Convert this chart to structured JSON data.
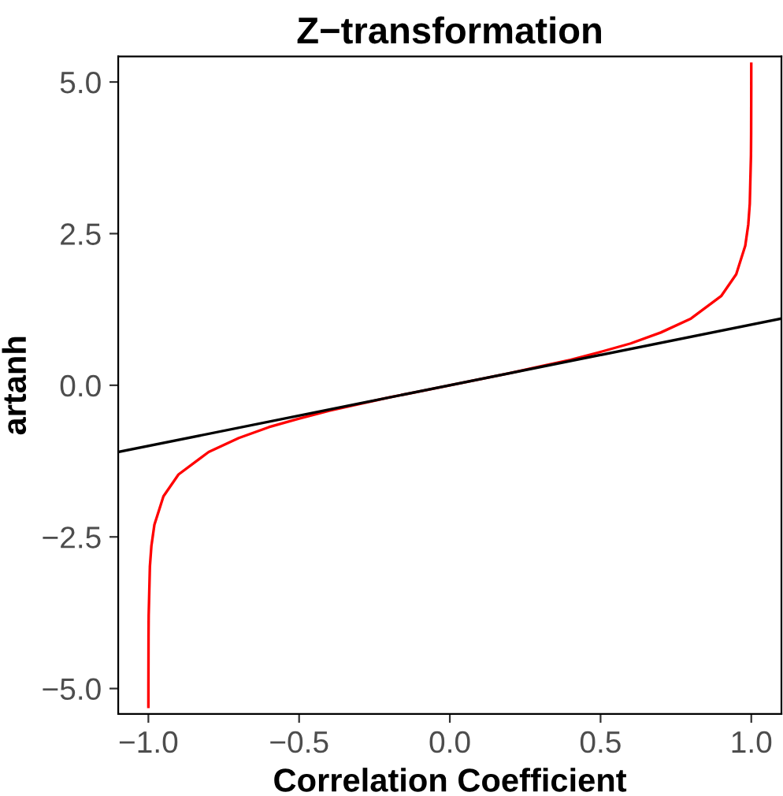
{
  "chart_data": {
    "type": "line",
    "title": "Z−transformation",
    "xlabel": "Correlation Coefficient",
    "ylabel": "artanh",
    "xlim": [
      -1.1,
      1.1
    ],
    "ylim": [
      -5.42,
      5.42
    ],
    "xticks": [
      {
        "value": -1.0,
        "label": "−1.0"
      },
      {
        "value": -0.5,
        "label": "−0.5"
      },
      {
        "value": 0,
        "label": "0.0"
      },
      {
        "value": 0.5,
        "label": "0.5"
      },
      {
        "value": 1.0,
        "label": "1.0"
      }
    ],
    "yticks": [
      {
        "value": -5.0,
        "label": "−5.0"
      },
      {
        "value": -2.5,
        "label": "−2.5"
      },
      {
        "value": 0,
        "label": "0.0"
      },
      {
        "value": 2.5,
        "label": "2.5"
      },
      {
        "value": 5.0,
        "label": "5.0"
      }
    ],
    "grid": false,
    "marker": "none",
    "line_style": "solid",
    "series": [
      {
        "color": "#ff0000",
        "x": [
          -0.99995,
          -0.9999,
          -0.9995,
          -0.999,
          -0.995,
          -0.99,
          -0.98,
          -0.95,
          -0.9,
          -0.8,
          -0.7,
          -0.6,
          -0.5,
          -0.4,
          -0.3,
          -0.2,
          -0.1,
          0,
          0.1,
          0.2,
          0.3,
          0.4,
          0.5,
          0.6,
          0.7,
          0.8,
          0.9,
          0.95,
          0.98,
          0.99,
          0.995,
          0.999,
          0.9995,
          0.9999,
          0.99995
        ],
        "values": [
          -5.3,
          -4.95,
          -4.15,
          -3.8,
          -2.99,
          -2.65,
          -2.3,
          -1.83,
          -1.47,
          -1.1,
          -0.87,
          -0.69,
          -0.55,
          -0.42,
          -0.31,
          -0.2,
          -0.1,
          0,
          0.1,
          0.2,
          0.31,
          0.42,
          0.55,
          0.69,
          0.87,
          1.1,
          1.47,
          1.83,
          2.3,
          2.65,
          2.99,
          3.8,
          4.15,
          4.95,
          5.3
        ]
      },
      {
        "color": "#000000",
        "x": [
          -1.1,
          1.1
        ],
        "values": [
          -1.1,
          1.1
        ]
      }
    ]
  }
}
